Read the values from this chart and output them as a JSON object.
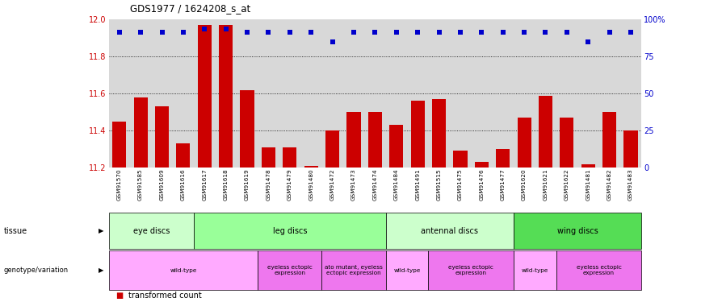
{
  "title": "GDS1977 / 1624208_s_at",
  "samples": [
    "GSM91570",
    "GSM91585",
    "GSM91609",
    "GSM91616",
    "GSM91617",
    "GSM91618",
    "GSM91619",
    "GSM91478",
    "GSM91479",
    "GSM91480",
    "GSM91472",
    "GSM91473",
    "GSM91474",
    "GSM91484",
    "GSM91491",
    "GSM91515",
    "GSM91475",
    "GSM91476",
    "GSM91477",
    "GSM91620",
    "GSM91621",
    "GSM91622",
    "GSM91481",
    "GSM91482",
    "GSM91483"
  ],
  "bar_values": [
    11.45,
    11.58,
    11.53,
    11.33,
    11.97,
    11.97,
    11.62,
    11.31,
    11.31,
    11.21,
    11.4,
    11.5,
    11.5,
    11.43,
    11.56,
    11.57,
    11.29,
    11.23,
    11.3,
    11.47,
    11.59,
    11.47,
    11.22,
    11.5,
    11.4
  ],
  "dot_values": [
    11.93,
    11.93,
    11.93,
    11.93,
    11.95,
    11.95,
    11.93,
    11.93,
    11.93,
    11.93,
    11.88,
    11.93,
    11.93,
    11.93,
    11.93,
    11.93,
    11.93,
    11.93,
    11.93,
    11.93,
    11.93,
    11.93,
    11.88,
    11.93,
    11.93
  ],
  "ymin": 11.2,
  "ymax": 12.0,
  "yticks": [
    11.2,
    11.4,
    11.6,
    11.8,
    12.0
  ],
  "right_yticks": [
    0,
    25,
    50,
    75,
    100
  ],
  "bar_color": "#cc0000",
  "dot_color": "#0000cc",
  "bg_color": "#d8d8d8",
  "tissue_regions": [
    {
      "label": "eye discs",
      "start": 0,
      "end": 4,
      "color": "#ccffcc"
    },
    {
      "label": "leg discs",
      "start": 4,
      "end": 13,
      "color": "#99ff99"
    },
    {
      "label": "antennal discs",
      "start": 13,
      "end": 19,
      "color": "#ccffcc"
    },
    {
      "label": "wing discs",
      "start": 19,
      "end": 25,
      "color": "#55dd55"
    }
  ],
  "genotype_regions": [
    {
      "label": "wild-type",
      "start": 0,
      "end": 7,
      "color": "#ffaaff"
    },
    {
      "label": "eyeless ectopic\nexpression",
      "start": 7,
      "end": 10,
      "color": "#ee77ee"
    },
    {
      "label": "ato mutant, eyeless\nectopic expression",
      "start": 10,
      "end": 13,
      "color": "#ee77ee"
    },
    {
      "label": "wild-type",
      "start": 13,
      "end": 15,
      "color": "#ffaaff"
    },
    {
      "label": "eyeless ectopic\nexpression",
      "start": 15,
      "end": 19,
      "color": "#ee77ee"
    },
    {
      "label": "wild-type",
      "start": 19,
      "end": 21,
      "color": "#ffaaff"
    },
    {
      "label": "eyeless ectopic\nexpression",
      "start": 21,
      "end": 25,
      "color": "#ee77ee"
    }
  ],
  "fig_width": 8.68,
  "fig_height": 3.75,
  "dpi": 100
}
